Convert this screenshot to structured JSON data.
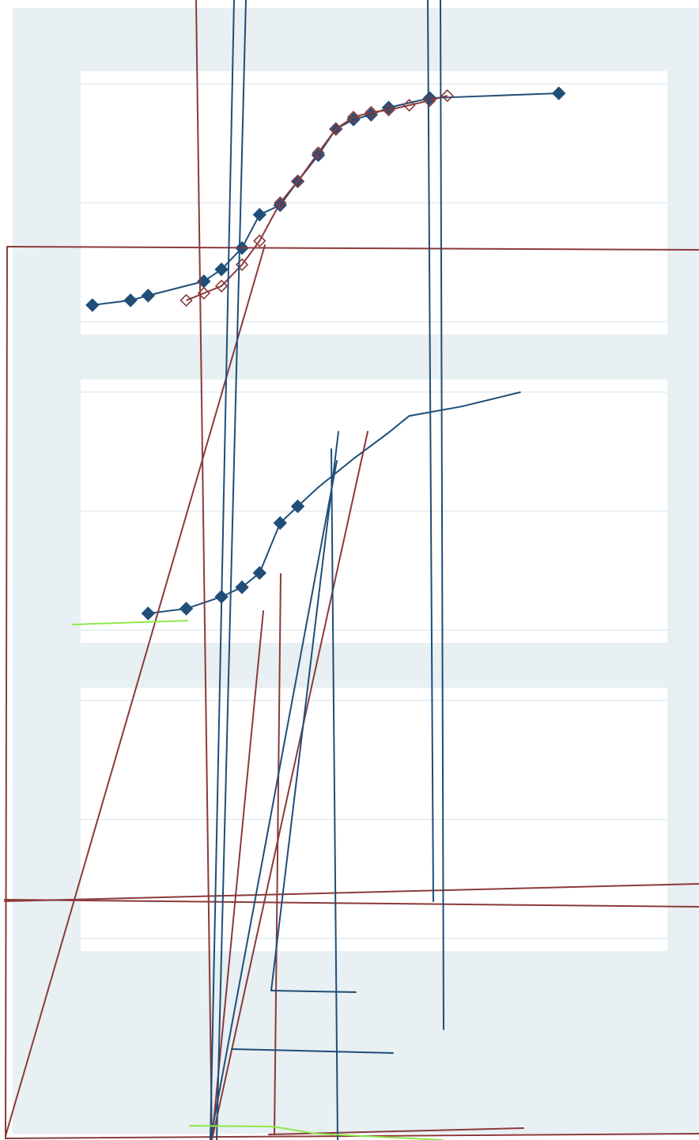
{
  "chart_data": [
    {
      "type": "line",
      "title": "",
      "xlabel": "",
      "ylabel": "",
      "xlim": [
        0,
        100
      ],
      "ylim": [
        0,
        100
      ],
      "grid": true,
      "legend": "none",
      "series": [
        {
          "color": "#1f4e79",
          "marker": "filled-diamond",
          "x": [
            2,
            8.5,
            11.5,
            21,
            24,
            27.5,
            30.5,
            34,
            37,
            40.5,
            43.5,
            46.5,
            49.5,
            52.5,
            59.5,
            81.5
          ],
          "y": [
            7,
            9,
            11,
            17,
            22,
            31,
            45,
            49,
            59,
            70,
            81,
            85,
            87,
            90,
            94,
            96
          ]
        },
        {
          "color": "#8b3a3a",
          "marker": "hollow-diamond",
          "x": [
            18,
            21,
            24,
            27.5,
            30.5,
            34,
            37,
            40.5,
            43.5,
            46.5,
            49.5,
            52.5,
            56,
            59.5,
            62.5
          ],
          "y": [
            9,
            12,
            15,
            24,
            34,
            50,
            59,
            71,
            81,
            86,
            88,
            89,
            91,
            93,
            95
          ]
        }
      ]
    },
    {
      "type": "line",
      "title": "",
      "xlabel": "",
      "ylabel": "",
      "xlim": [
        0,
        100
      ],
      "ylim": [
        0,
        100
      ],
      "grid": true,
      "legend": "none",
      "series": [
        {
          "color": "#1f4e79",
          "marker": "filled-diamond",
          "x": [
            11.5,
            18,
            24,
            27.5,
            30.5,
            34,
            37,
            40.5,
            43.5,
            46.5,
            52.5,
            56,
            65,
            75
          ],
          "y": [
            7,
            9,
            14,
            18,
            24,
            45,
            52,
            60,
            66,
            72,
            83,
            90,
            94,
            100
          ],
          "marker_count": 7
        }
      ]
    },
    {
      "type": "line",
      "title": "",
      "xlabel": "",
      "ylabel": "",
      "xlim": [
        0,
        100
      ],
      "ylim": [
        0,
        100
      ],
      "grid": true,
      "legend": "none",
      "series": []
    }
  ],
  "colors": {
    "outer_background": "#e8f0f3",
    "plot_background": "#ffffff",
    "gridline": "#e3ecf0",
    "series_blue": "#1f4e79",
    "series_red": "#8b3a3a",
    "stroke_green": "#8fe84a"
  },
  "overlay_strokes": [
    {
      "color": "#8b3a3a"
    },
    {
      "color": "#1f4e79"
    },
    {
      "color": "#8fe84a"
    }
  ]
}
